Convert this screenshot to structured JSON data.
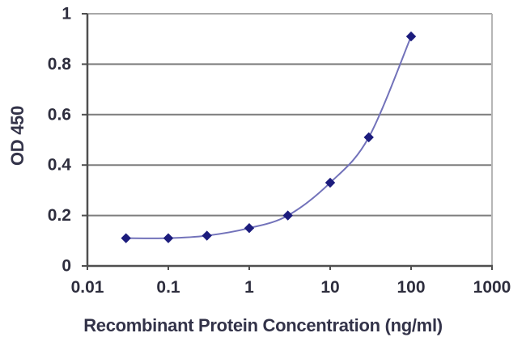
{
  "chart_data": {
    "type": "line",
    "title": "",
    "xlabel": "Recombinant Protein Concentration (ng/ml)",
    "ylabel": "OD 450",
    "x_scale": "log",
    "xlim": [
      0.01,
      1000
    ],
    "ylim": [
      0,
      1
    ],
    "x_tick_values": [
      0.01,
      0.1,
      1,
      10,
      100,
      1000
    ],
    "x_tick_labels": [
      "0.01",
      "0.1",
      "1",
      "10",
      "100",
      "1000"
    ],
    "y_tick_values": [
      0,
      0.2,
      0.4,
      0.6,
      0.8,
      1
    ],
    "y_tick_labels": [
      "0",
      "0.2",
      "0.4",
      "0.6",
      "0.8",
      "1"
    ],
    "grid": "horizontal",
    "legend_position": "none",
    "series": [
      {
        "x": [
          0.03,
          0.1,
          0.3,
          1,
          3,
          10,
          30,
          100
        ],
        "y": [
          0.11,
          0.11,
          0.12,
          0.15,
          0.2,
          0.33,
          0.51,
          0.91
        ],
        "marker": "diamond",
        "line_color": "#7272ba",
        "marker_color": "#1c1c7d"
      }
    ],
    "colors": {
      "gridline": "#7d7d7d",
      "plot_top_border": "#a8a8a8",
      "plot_right_border": "#b6b6b6",
      "axis_line": "#4f4f4f",
      "tick_text": "#2e2e3e",
      "axis_title_text": "#333349",
      "background": "#ffffff"
    }
  }
}
